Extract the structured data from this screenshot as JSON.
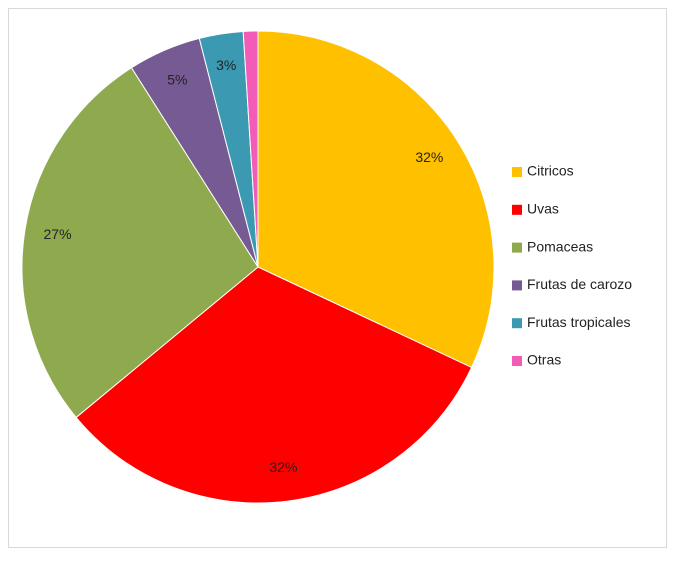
{
  "chart_data": {
    "type": "pie",
    "categories": [
      "Citricos",
      "Uvas",
      "Pomaceas",
      "Frutas de carozo",
      "Frutas tropicales",
      "Otras"
    ],
    "values": [
      32,
      32,
      27,
      5,
      3,
      1
    ],
    "value_labels": [
      "32%",
      "32%",
      "27%",
      "5%",
      "3%",
      null
    ],
    "colors": [
      "#FFC000",
      "#FF0000",
      "#8FAA4E",
      "#765A94",
      "#3B9AB2",
      "#F25CB8"
    ],
    "legend": "right"
  }
}
